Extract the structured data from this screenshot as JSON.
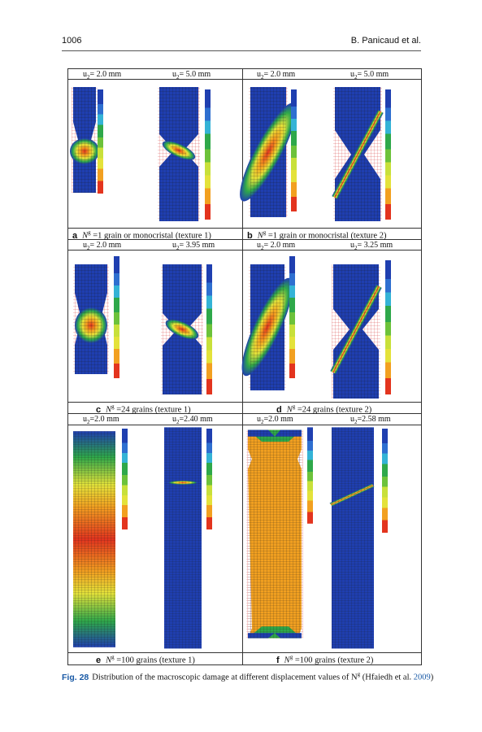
{
  "header": {
    "page_number": "1006",
    "authors": "B. Panicaud et al."
  },
  "rows": [
    {
      "heads": [
        "u2= 2.0 mm",
        "u2= 5.0 mm",
        "u2= 2.0 mm",
        "u2= 5.0 mm"
      ],
      "labels": [
        {
          "letter": "a",
          "pre": "N",
          "sup": "g",
          "post": " =1 grain or monocristal (texture 1)"
        },
        {
          "letter": "b",
          "pre": "N",
          "sup": "g",
          "post": " =1 grain or monocristal (texture 2)"
        }
      ]
    },
    {
      "heads": [
        "u2= 2.0 mm",
        "u2= 3.95 mm",
        "u2= 2.0 mm",
        "u2= 3.25 mm"
      ],
      "labels": [
        {
          "letter": "c",
          "pre": "N",
          "sup": "g",
          "post": " =24 grains (texture 1)"
        },
        {
          "letter": "d",
          "pre": "N",
          "sup": "g",
          "post": " =24 grains (texture 2)"
        }
      ]
    },
    {
      "heads": [
        "u2=2.0 mm",
        "u2=2.40 mm",
        "u2=2.0 mm",
        "u2=2.58 mm"
      ],
      "labels": [
        {
          "letter": "e",
          "pre": "N",
          "sup": "g",
          "post": " =100 grains (texture 1)"
        },
        {
          "letter": "f",
          "pre": "N",
          "sup": "g",
          "post": " =100 grains (texture 2)"
        }
      ]
    }
  ],
  "caption": {
    "label": "Fig. 28",
    "text": "Distribution of the macroscopic damage at different displacement values of N",
    "sup": "g",
    "text2": " (Hfaiedh et al. ",
    "ref_year": "2009",
    "text3": ")"
  },
  "colors": {
    "blue": "#1f3fb0",
    "cyan": "#34b3d6",
    "green": "#2ea84a",
    "yellow": "#e4e23a",
    "orange": "#f2a020",
    "red": "#e3341e",
    "mesh_red": "#d02020"
  }
}
